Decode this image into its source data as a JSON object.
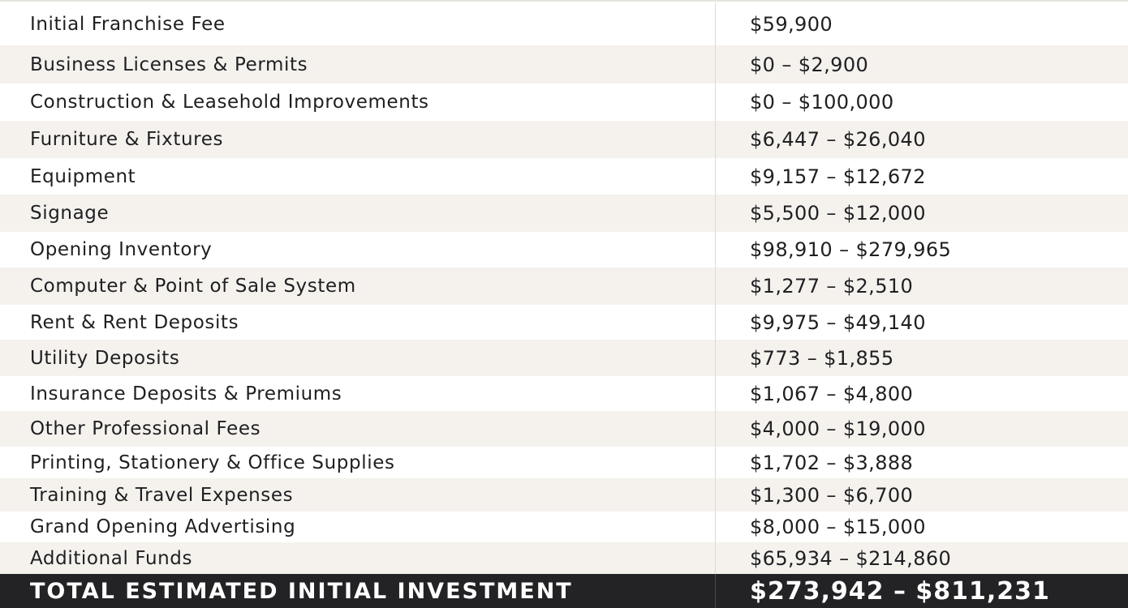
{
  "table": {
    "rows": [
      {
        "label": "Initial Franchise Fee",
        "value": "$59,900"
      },
      {
        "label": "Business Licenses & Permits",
        "value": "$0 – $2,900"
      },
      {
        "label": "Construction & Leasehold Improvements",
        "value": "$0 – $100,000"
      },
      {
        "label": "Furniture & Fixtures",
        "value": "$6,447 – $26,040"
      },
      {
        "label": "Equipment",
        "value": "$9,157 – $12,672"
      },
      {
        "label": "Signage",
        "value": "$5,500 – $12,000"
      },
      {
        "label": "Opening Inventory",
        "value": "$98,910 – $279,965"
      },
      {
        "label": "Computer & Point of Sale System",
        "value": "$1,277 – $2,510"
      },
      {
        "label": "Rent & Rent Deposits",
        "value": "$9,975 – $49,140"
      },
      {
        "label": "Utility Deposits",
        "value": "$773 – $1,855"
      },
      {
        "label": "Insurance Deposits & Premiums",
        "value": "$1,067 – $4,800"
      },
      {
        "label": "Other Professional Fees",
        "value": "$4,000 – $19,000"
      },
      {
        "label": "Printing, Stationery & Office Supplies",
        "value": "$1,702 – $3,888"
      },
      {
        "label": "Training & Travel Expenses",
        "value": "$1,300 – $6,700"
      },
      {
        "label": "Grand Opening Advertising",
        "value": "$8,000 – $15,000"
      },
      {
        "label": "Additional Funds",
        "value": "$65,934 – $214,860"
      }
    ],
    "total": {
      "label": "TOTAL ESTIMATED INITIAL INVESTMENT",
      "value": "$273,942 – $811,231"
    }
  },
  "colors": {
    "row_alt": "#f5f2ee",
    "total_bg": "#232326",
    "text": "#1f1f22"
  }
}
